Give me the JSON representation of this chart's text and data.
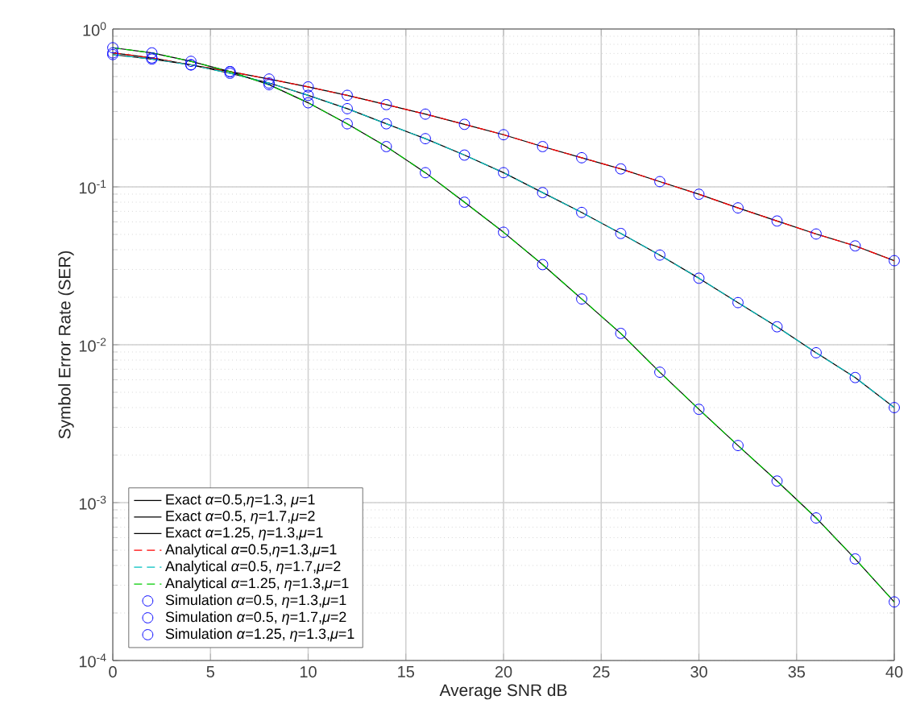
{
  "chart_data": {
    "type": "line",
    "xlabel": "Average SNR dB",
    "ylabel": "Symbol Error Rate (SER)",
    "x": [
      0,
      2,
      4,
      6,
      8,
      10,
      12,
      14,
      16,
      18,
      20,
      22,
      24,
      26,
      28,
      30,
      32,
      34,
      36,
      38,
      40
    ],
    "series": [
      {
        "name": "Exact *α*=0.5,*η*=1.3, *μ*=1",
        "line_style": "solid",
        "marker": "none",
        "color": "#000000",
        "values": [
          0.706,
          0.656,
          0.593,
          0.537,
          0.482,
          0.43,
          0.38,
          0.332,
          0.289,
          0.249,
          0.214,
          0.18,
          0.153,
          0.13,
          0.108,
          0.0898,
          0.0736,
          0.0608,
          0.0503,
          0.0423,
          0.0341
        ]
      },
      {
        "name": "Exact *α*=0.5, *η*=1.7,*μ*=2",
        "line_style": "solid",
        "marker": "none",
        "color": "#000000",
        "values": [
          0.689,
          0.645,
          0.593,
          0.524,
          0.455,
          0.38,
          0.313,
          0.251,
          0.202,
          0.159,
          0.123,
          0.092,
          0.0689,
          0.0507,
          0.037,
          0.0264,
          0.0185,
          0.013,
          0.0089,
          0.0062,
          0.004
        ]
      },
      {
        "name": "Exact *α*=1.25, *η*=1.3,*μ*=1",
        "line_style": "solid",
        "marker": "none",
        "color": "#000000",
        "values": [
          0.761,
          0.706,
          0.624,
          0.537,
          0.444,
          0.341,
          0.251,
          0.18,
          0.123,
          0.08,
          0.0516,
          0.0322,
          0.0195,
          0.0118,
          0.0067,
          0.0039,
          0.0023,
          0.00137,
          0.0008,
          0.00044,
          0.000235
        ]
      },
      {
        "name": "Analytical *α*=0.5,*η*=1.3,*μ*=1",
        "line_style": "dashed",
        "marker": "none",
        "color": "#ff0000",
        "values": [
          0.706,
          0.656,
          0.593,
          0.537,
          0.482,
          0.43,
          0.38,
          0.332,
          0.289,
          0.249,
          0.214,
          0.18,
          0.153,
          0.13,
          0.108,
          0.0898,
          0.0736,
          0.0608,
          0.0503,
          0.0423,
          0.0341
        ]
      },
      {
        "name": "Analytical *α*=0.5, *η*=1.7,*μ*=2",
        "line_style": "dashed",
        "marker": "none",
        "color": "#00c0c0",
        "values": [
          0.689,
          0.645,
          0.593,
          0.524,
          0.455,
          0.38,
          0.313,
          0.251,
          0.202,
          0.159,
          0.123,
          0.092,
          0.0689,
          0.0507,
          0.037,
          0.0264,
          0.0185,
          0.013,
          0.0089,
          0.0062,
          0.004
        ]
      },
      {
        "name": "Analytical *α*=1.25, *η*=1.3,*μ*=1",
        "line_style": "dashed",
        "marker": "none",
        "color": "#00cc00",
        "values": [
          0.761,
          0.706,
          0.624,
          0.537,
          0.444,
          0.341,
          0.251,
          0.18,
          0.123,
          0.08,
          0.0516,
          0.0322,
          0.0195,
          0.0118,
          0.0067,
          0.0039,
          0.0023,
          0.00137,
          0.0008,
          0.00044,
          0.000235
        ]
      },
      {
        "name": "Simulation *α*=0.5, *η*=1.3,*μ*=1",
        "type": "scatter",
        "marker": "circle",
        "color": "#0000ff",
        "values": [
          0.706,
          0.656,
          0.593,
          0.537,
          0.482,
          0.43,
          0.38,
          0.332,
          0.289,
          0.249,
          0.214,
          0.18,
          0.153,
          0.13,
          0.108,
          0.0898,
          0.0736,
          0.0608,
          0.0503,
          0.0423,
          0.0341
        ]
      },
      {
        "name": "Simulation *α*=0.5, *η*=1.7,*μ*=2",
        "type": "scatter",
        "marker": "circle",
        "color": "#0000ff",
        "values": [
          0.689,
          0.645,
          0.593,
          0.524,
          0.455,
          0.38,
          0.313,
          0.251,
          0.202,
          0.159,
          0.123,
          0.092,
          0.0689,
          0.0507,
          0.037,
          0.0264,
          0.0185,
          0.013,
          0.0089,
          0.0062,
          0.004
        ]
      },
      {
        "name": "Simulation *α*=1.25, *η*=1.3,*μ*=1",
        "type": "scatter",
        "marker": "circle",
        "color": "#0000ff",
        "values": [
          0.761,
          0.706,
          0.624,
          0.537,
          0.444,
          0.341,
          0.251,
          0.18,
          0.123,
          0.08,
          0.0516,
          0.0322,
          0.0195,
          0.0118,
          0.0067,
          0.0039,
          0.0023,
          0.00137,
          0.0008,
          0.00044,
          0.000235
        ]
      }
    ],
    "xlim": [
      0,
      40
    ],
    "xticks": [
      0,
      5,
      10,
      15,
      20,
      25,
      30,
      35,
      40
    ],
    "ylim": [
      0.0001,
      1
    ],
    "yticks": [
      {
        "value": 0.0001,
        "label": "10$^{-4}$"
      },
      {
        "value": 0.001,
        "label": "10$^{-3}$"
      },
      {
        "value": 0.01,
        "label": "10$^{-2}$"
      },
      {
        "value": 0.1,
        "label": "10$^{-1}$"
      },
      {
        "value": 1,
        "label": "10$^{0}$"
      }
    ],
    "log": "y",
    "grid": true,
    "legend": "bottom left"
  }
}
